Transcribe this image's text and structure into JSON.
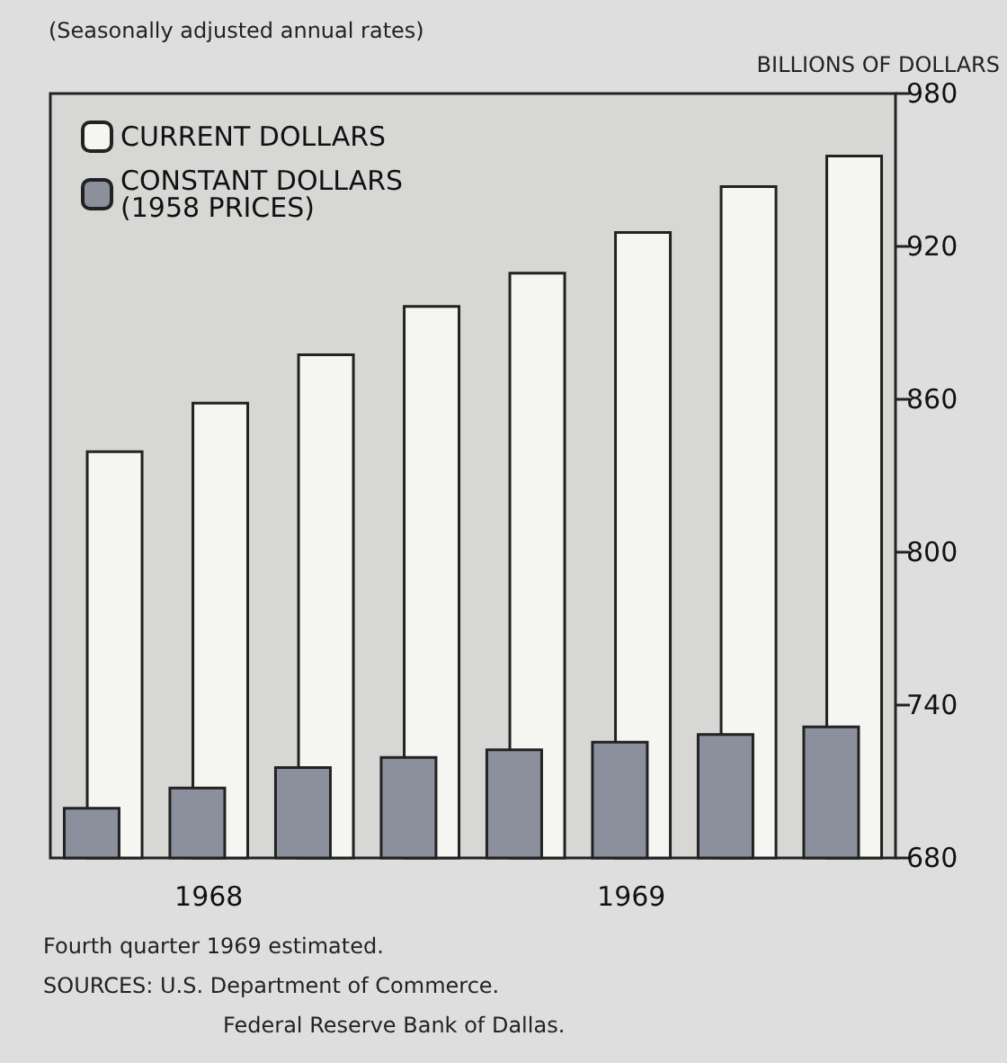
{
  "chart_data": {
    "type": "bar",
    "title": "(Seasonally adjusted annual rates)",
    "ylabel": "BILLIONS OF DOLLARS",
    "categories": [
      null,
      "1968",
      null,
      null,
      null,
      "1969",
      null,
      null
    ],
    "series": [
      {
        "name": "CURRENT DOLLARS",
        "color": "#f5f5f2",
        "values": [
          840,
          859,
          878,
          897,
          910,
          926,
          944,
          956
        ]
      },
      {
        "name": "CONSTANT DOLLARS\n(1958 PRICES)",
        "color": "#8c909c",
        "values": [
          700,
          708,
          716,
          720,
          723,
          726,
          729,
          732
        ]
      }
    ],
    "ylim": [
      680,
      980
    ],
    "yticks": [
      680,
      740,
      800,
      860,
      920,
      980
    ],
    "grid": false,
    "legend": "top left",
    "annotations": [
      "Fourth quarter 1969 estimated.",
      "SOURCES: U.S. Department of Commerce.",
      "Federal Reserve Bank of Dallas."
    ]
  }
}
